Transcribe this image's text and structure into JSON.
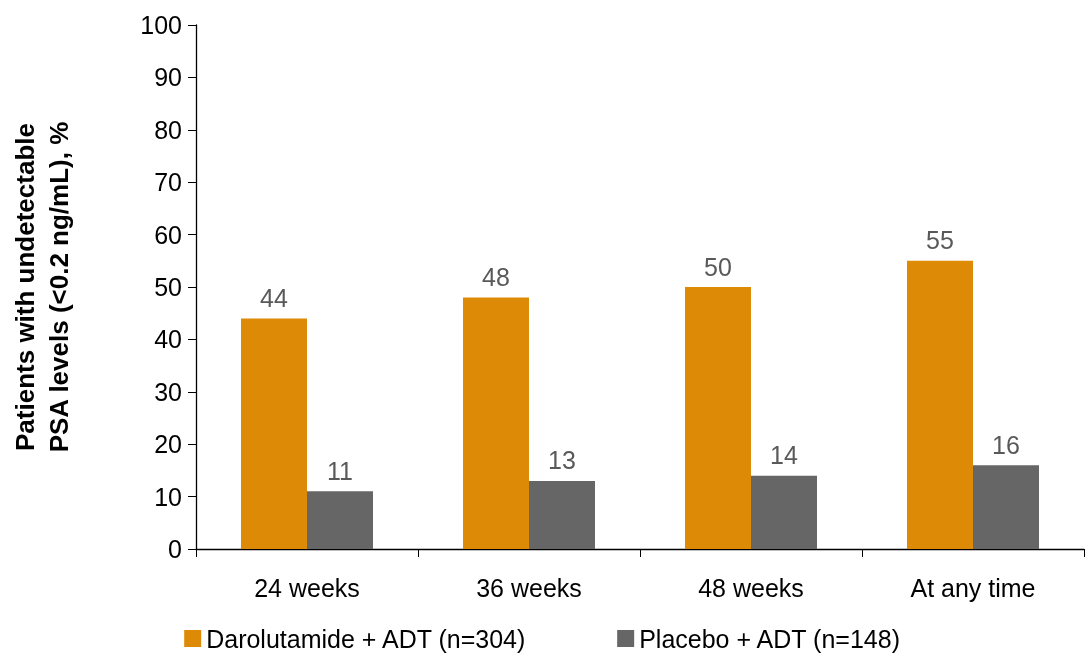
{
  "chart_data": {
    "type": "bar",
    "ylabel": "Patients with undetectable PSA levels (<0.2 ng/mL), %",
    "categories": [
      "24 weeks",
      "36 weeks",
      "48 weeks",
      "At any time"
    ],
    "series": [
      {
        "name": "Darolutamide + ADT (n=304)",
        "color": "#dd8a06",
        "values": [
          44,
          48,
          50,
          55
        ]
      },
      {
        "name": "Placebo + ADT (n=148)",
        "color": "#666666",
        "values": [
          11,
          13,
          14,
          16
        ]
      }
    ],
    "ylim": [
      0,
      100
    ],
    "yticks": [
      0,
      10,
      20,
      30,
      40,
      50,
      60,
      70,
      80,
      90,
      100
    ],
    "grid": false,
    "legend": "bottom",
    "data_labels": true
  }
}
